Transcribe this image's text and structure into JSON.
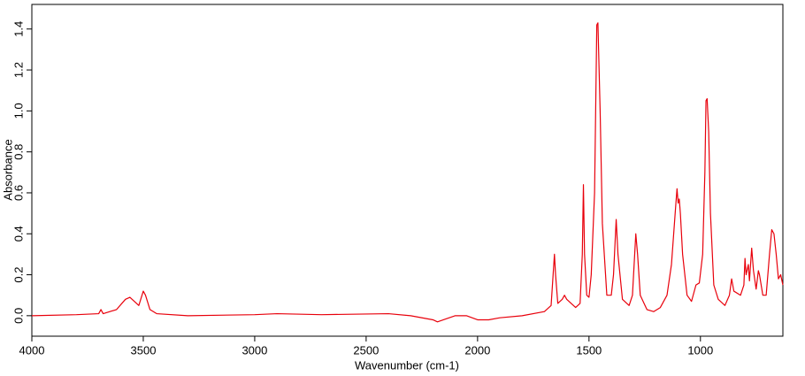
{
  "chart_data": {
    "type": "line",
    "x_label": "Wavenumber (cm-1)",
    "y_label": "Absorbance",
    "xlim": [
      4000,
      630
    ],
    "ylim": [
      -0.1,
      1.52
    ],
    "xticks": [
      4000,
      3500,
      3000,
      2500,
      2000,
      1500,
      1000
    ],
    "yticks": [
      {
        "value": 0,
        "label": "0.0"
      },
      0.2,
      0.4,
      0.6,
      0.8,
      {
        "value": 1,
        "label": "1.0"
      },
      1.2,
      1.4
    ],
    "grid": false,
    "x": [
      4000,
      3800,
      3700,
      3690,
      3680,
      3620,
      3580,
      3560,
      3540,
      3520,
      3500,
      3490,
      3470,
      3440,
      3300,
      3000,
      2900,
      2700,
      2400,
      2300,
      2200,
      2180,
      2100,
      2050,
      2000,
      1950,
      1900,
      1800,
      1700,
      1670,
      1655,
      1650,
      1640,
      1620,
      1610,
      1600,
      1560,
      1540,
      1530,
      1525,
      1520,
      1510,
      1500,
      1490,
      1475,
      1465,
      1460,
      1450,
      1440,
      1420,
      1400,
      1390,
      1378,
      1370,
      1350,
      1320,
      1305,
      1295,
      1290,
      1282,
      1270,
      1240,
      1210,
      1180,
      1150,
      1130,
      1110,
      1105,
      1100,
      1095,
      1090,
      1080,
      1060,
      1040,
      1020,
      1005,
      990,
      980,
      975,
      970,
      963,
      955,
      940,
      920,
      890,
      870,
      860,
      850,
      820,
      805,
      800,
      795,
      785,
      780,
      770,
      762,
      750,
      740,
      735,
      720,
      705,
      690,
      680,
      670,
      660,
      650,
      640,
      630
    ],
    "series": [
      {
        "name": "Absorbance",
        "color": "#e8000b",
        "values": [
          0.0,
          0.005,
          0.01,
          0.03,
          0.01,
          0.03,
          0.08,
          0.09,
          0.07,
          0.05,
          0.12,
          0.1,
          0.03,
          0.01,
          0.0,
          0.005,
          0.01,
          0.005,
          0.01,
          0.0,
          -0.02,
          -0.03,
          0.0,
          0.0,
          -0.02,
          -0.02,
          -0.01,
          0.0,
          0.02,
          0.05,
          0.3,
          0.2,
          0.06,
          0.08,
          0.1,
          0.08,
          0.04,
          0.06,
          0.3,
          0.64,
          0.3,
          0.1,
          0.09,
          0.2,
          0.6,
          1.42,
          1.43,
          1.0,
          0.45,
          0.1,
          0.1,
          0.2,
          0.47,
          0.3,
          0.08,
          0.05,
          0.1,
          0.3,
          0.4,
          0.3,
          0.1,
          0.03,
          0.02,
          0.04,
          0.1,
          0.25,
          0.55,
          0.62,
          0.55,
          0.57,
          0.5,
          0.3,
          0.1,
          0.07,
          0.15,
          0.16,
          0.3,
          0.7,
          1.05,
          1.06,
          0.9,
          0.5,
          0.15,
          0.08,
          0.05,
          0.1,
          0.18,
          0.12,
          0.1,
          0.15,
          0.28,
          0.2,
          0.25,
          0.17,
          0.33,
          0.22,
          0.13,
          0.22,
          0.2,
          0.1,
          0.1,
          0.3,
          0.42,
          0.4,
          0.3,
          0.18,
          0.2,
          0.15
        ]
      }
    ]
  }
}
